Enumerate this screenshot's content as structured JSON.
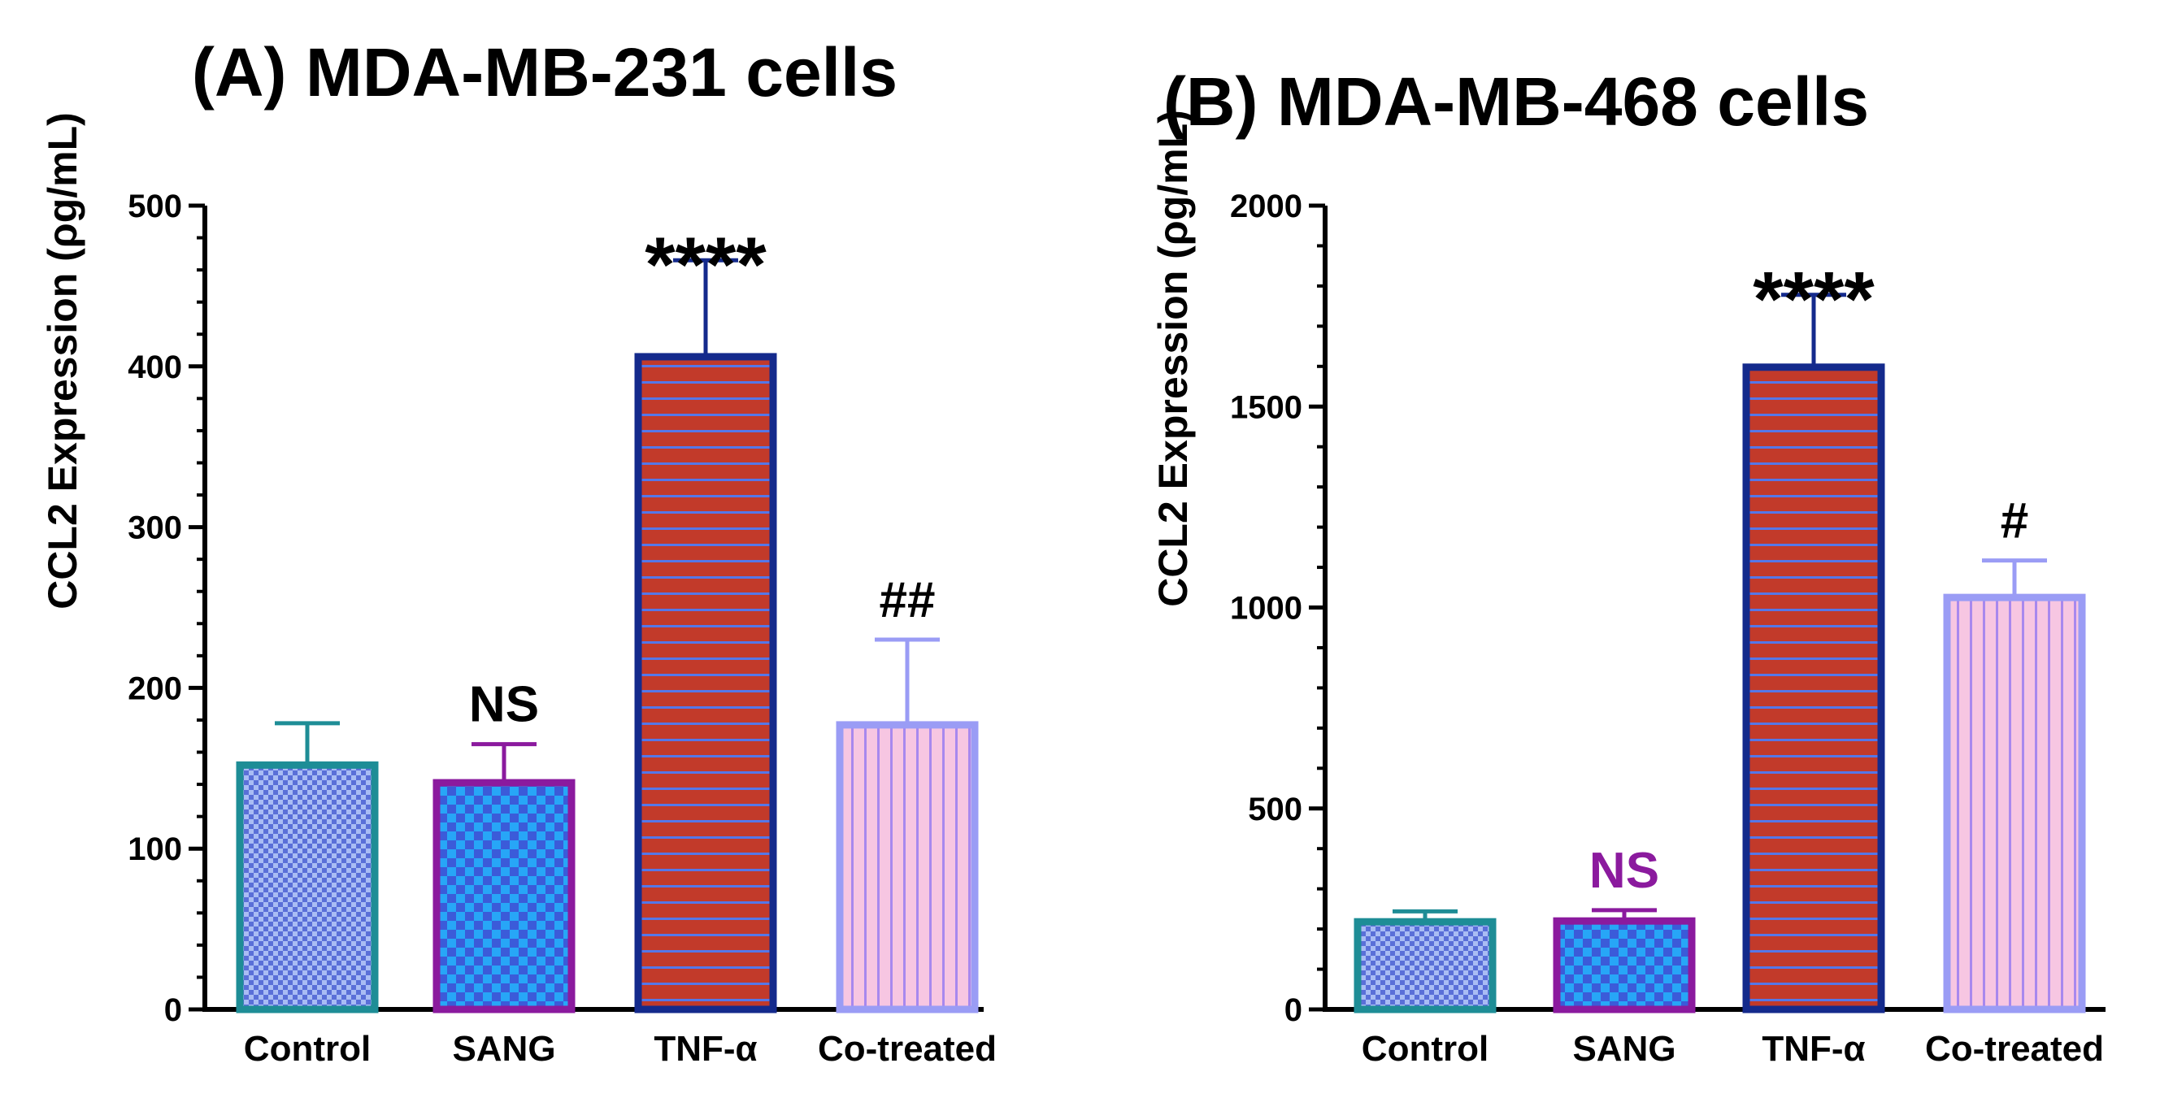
{
  "figure_caption": "",
  "chart_data": [
    {
      "type": "bar",
      "title": "(A) MDA-MB-231 cells",
      "ylabel": "CCL2 Expression (ρg/mL)",
      "xlabel": "",
      "ylim": [
        0,
        500
      ],
      "yticks": [
        0,
        100,
        200,
        300,
        400,
        500
      ],
      "categories": [
        "Control",
        "SANG",
        "TNF-α",
        "Co-treated"
      ],
      "values": [
        152,
        141,
        406,
        177
      ],
      "errors": [
        26,
        24,
        60,
        53
      ],
      "annotations": [
        "",
        "NS",
        "****",
        "##"
      ],
      "annotation_colors": [
        "#000000",
        "#000000",
        "#000000",
        "#000000"
      ]
    },
    {
      "type": "bar",
      "title": "(B) MDA-MB-468 cells",
      "ylabel": "CCL2 Expression (ρg/mL)",
      "xlabel": "",
      "ylim": [
        0,
        2000
      ],
      "yticks": [
        0,
        500,
        1000,
        1500,
        2000
      ],
      "categories": [
        "Control",
        "SANG",
        "TNF-α",
        "Co-treated"
      ],
      "values": [
        218,
        220,
        1598,
        1025
      ],
      "errors": [
        26,
        27,
        180,
        92
      ],
      "annotations": [
        "",
        "NS",
        "****",
        "#"
      ],
      "annotation_colors": [
        "#000000",
        "#8b1a9e",
        "#000000",
        "#000000"
      ]
    }
  ],
  "bar_styles": [
    {
      "name": "Control",
      "stroke": "#1e8d96",
      "fill": "#9fb3f2",
      "pattern": "fine-checker",
      "pattern_color": "#5a6fd8"
    },
    {
      "name": "SANG",
      "stroke": "#8b1a9e",
      "fill": "#2aa3f5",
      "pattern": "checker",
      "pattern_color": "#3b5bd9"
    },
    {
      "name": "TNF-α",
      "stroke": "#142a8c",
      "fill": "#c0392b",
      "pattern": "horizontal-lines",
      "pattern_color": "#5577e8"
    },
    {
      "name": "Co-treated",
      "stroke": "#9a9cf5",
      "fill": "#f7c6e2",
      "pattern": "vertical-lines",
      "pattern_color": "#a888ee"
    }
  ]
}
